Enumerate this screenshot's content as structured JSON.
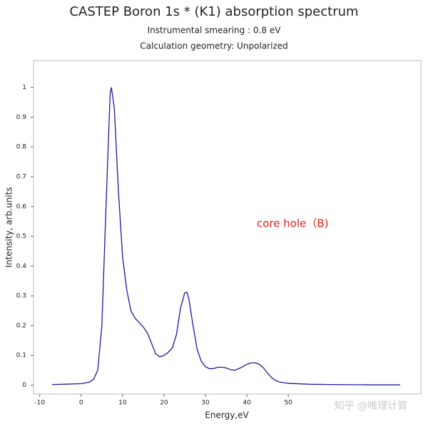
{
  "chart_data": {
    "type": "line",
    "title": "CASTEP Boron 1s * (K1) absorption spectrum",
    "subtitle": "Instrumental smearing : 0.8 eV",
    "subtitle2": "Calculation geometry: Unpolarized",
    "x_label": "Energy,eV",
    "y_label": "Intensity, arb.units",
    "annotation": "core hole（B)",
    "annotation_color": "#e02020",
    "watermark": "知乎 @唯理计算",
    "xlim": [
      -11.5,
      82
    ],
    "ylim": [
      -0.03,
      1.09
    ],
    "xticks": [
      -10,
      0,
      10,
      20,
      30,
      40,
      50
    ],
    "yticks": [
      0,
      0.1,
      0.2,
      0.3,
      0.4,
      0.5,
      0.6,
      0.7,
      0.8,
      0.9,
      1
    ],
    "series": [
      {
        "color": "#1a1aa0",
        "x": [
          -7,
          -4,
          0,
          2,
          3,
          4,
          5,
          6,
          7,
          7.3,
          8,
          9,
          10,
          11,
          12,
          13,
          14,
          15,
          16,
          17,
          18,
          19,
          20,
          21,
          22,
          23,
          24,
          25,
          25.5,
          26,
          27,
          28,
          29,
          30,
          31,
          32,
          33,
          34,
          35,
          36,
          37,
          38,
          39,
          40,
          41,
          42,
          43,
          44,
          45,
          46,
          47,
          48,
          50,
          55,
          60,
          70,
          77
        ],
        "values": [
          0.002,
          0.003,
          0.005,
          0.01,
          0.02,
          0.05,
          0.2,
          0.6,
          0.98,
          1.0,
          0.93,
          0.65,
          0.43,
          0.32,
          0.25,
          0.225,
          0.21,
          0.195,
          0.175,
          0.14,
          0.105,
          0.095,
          0.1,
          0.11,
          0.125,
          0.17,
          0.26,
          0.31,
          0.312,
          0.29,
          0.2,
          0.12,
          0.08,
          0.062,
          0.055,
          0.056,
          0.06,
          0.06,
          0.058,
          0.052,
          0.05,
          0.055,
          0.062,
          0.07,
          0.075,
          0.075,
          0.07,
          0.058,
          0.04,
          0.025,
          0.015,
          0.01,
          0.006,
          0.003,
          0.002,
          0.001,
          0.001
        ]
      }
    ]
  }
}
